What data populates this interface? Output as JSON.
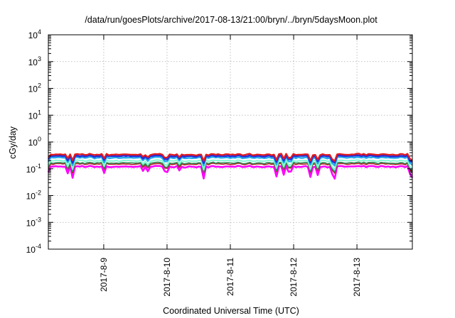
{
  "chart_data": {
    "type": "line",
    "title": "/data/run/goesPlots/archive/2017-08-13/21:00/bryn/../bryn/5daysMoon.plot",
    "xlabel": "Coordinated Universal Time (UTC)",
    "ylabel": "cGy/day",
    "x_start": "2017-08-08 03:00",
    "x_end": "2017-08-13 21:00",
    "x_ticks": [
      "2017-8-9",
      "2017-8-10",
      "2017-8-11",
      "2017-8-12",
      "2017-8-13"
    ],
    "y_scale": "log",
    "ylim": [
      0.0001,
      10000
    ],
    "y_ticks": [
      {
        "base": "10",
        "exp": "-4"
      },
      {
        "base": "10",
        "exp": "-3"
      },
      {
        "base": "10",
        "exp": "-2"
      },
      {
        "base": "10",
        "exp": "-1"
      },
      {
        "base": "10",
        "exp": "0"
      },
      {
        "base": "10",
        "exp": "1"
      },
      {
        "base": "10",
        "exp": "2"
      },
      {
        "base": "10",
        "exp": "3"
      },
      {
        "base": "10",
        "exp": "4"
      }
    ],
    "grid": true,
    "legend": "none",
    "series": [
      {
        "color": "#e41a1c",
        "level": 0.34,
        "dip": 0.58,
        "width": 2.2
      },
      {
        "color": "#2b2bd6",
        "level": 0.3,
        "dip": 0.55,
        "width": 2.6
      },
      {
        "color": "#22aaee",
        "level": 0.26,
        "dip": 0.5,
        "width": 2.4
      },
      {
        "color": "#7fffd4",
        "level": 0.2,
        "dip": 0.45,
        "width": 2.0
      },
      {
        "color": "#2e8b57",
        "level": 0.165,
        "dip": 0.45,
        "width": 1.6
      },
      {
        "color": "#b22222",
        "level": 0.15,
        "dip": 0.45,
        "width": 1.6
      },
      {
        "color": "#ff00ff",
        "level": 0.12,
        "dip": 0.35,
        "width": 2.6
      }
    ]
  }
}
